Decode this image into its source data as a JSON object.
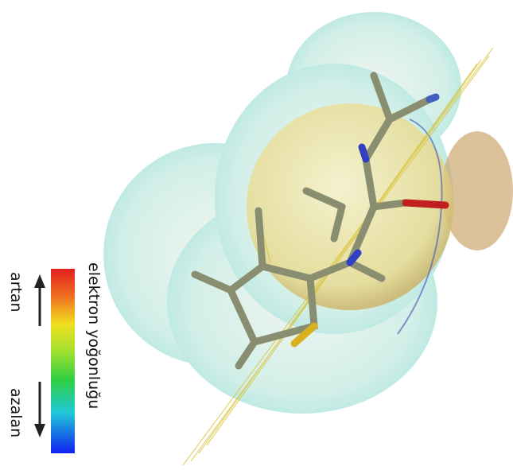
{
  "legend": {
    "high": "artan",
    "low": "azalan",
    "title": "elektron yoğonluğu"
  }
}
